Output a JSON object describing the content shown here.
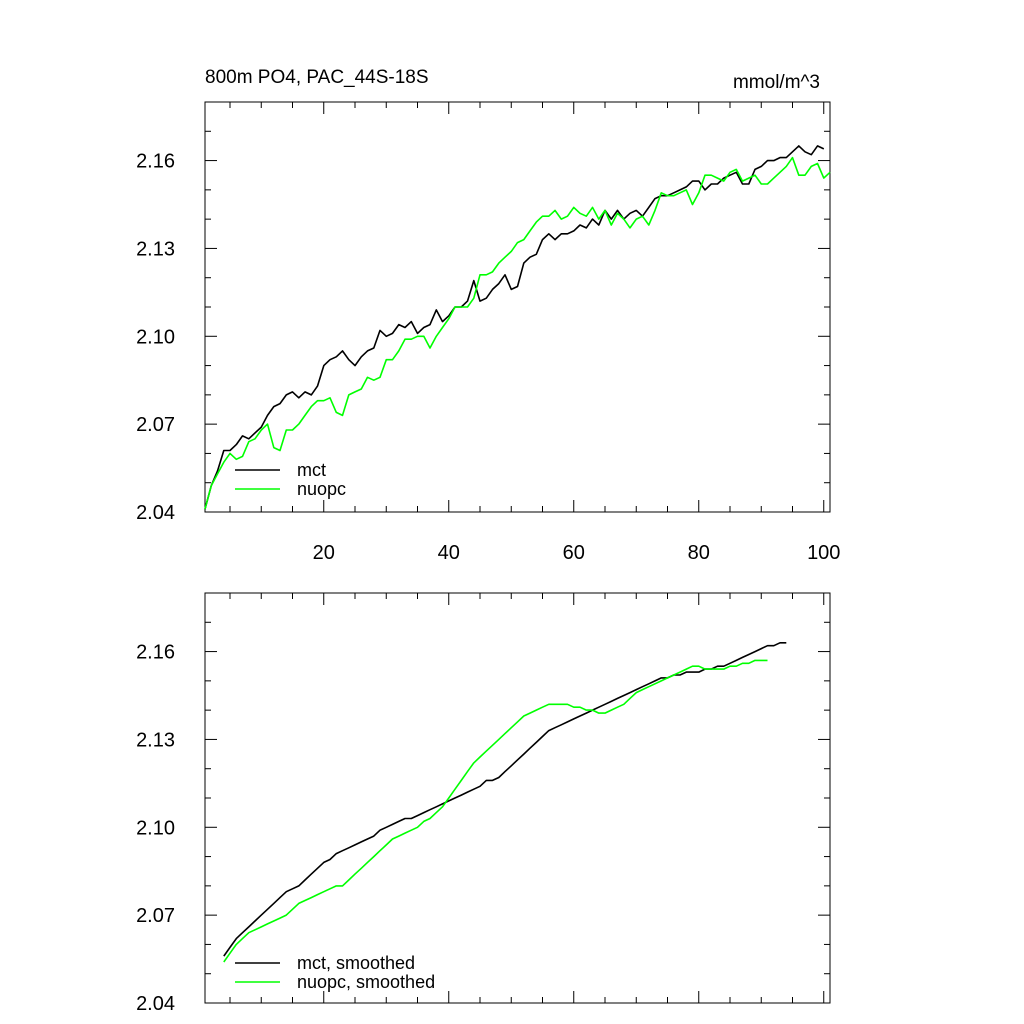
{
  "chart_data": [
    {
      "type": "line",
      "title": "800m PO4, PAC_44S-18S",
      "units": "mmol/m^3",
      "xlim": [
        1,
        101
      ],
      "ylim": [
        2.04,
        2.18
      ],
      "xticks": [
        20,
        40,
        60,
        80,
        100
      ],
      "yticks": [
        2.04,
        2.07,
        2.1,
        2.13,
        2.16
      ],
      "ytick_labels": [
        "2.04",
        "2.07",
        "2.10",
        "2.13",
        "2.16"
      ],
      "xtick_labels": [
        "20",
        "40",
        "60",
        "80",
        "100"
      ],
      "legend_position": "bottom-left",
      "series": [
        {
          "name": "mct",
          "color": "#000000",
          "x_start": 1,
          "values": [
            2.041,
            2.049,
            2.054,
            2.061,
            2.061,
            2.063,
            2.066,
            2.065,
            2.067,
            2.069,
            2.073,
            2.076,
            2.077,
            2.08,
            2.081,
            2.079,
            2.081,
            2.08,
            2.083,
            2.09,
            2.092,
            2.093,
            2.095,
            2.092,
            2.09,
            2.093,
            2.095,
            2.096,
            2.102,
            2.1,
            2.101,
            2.104,
            2.103,
            2.105,
            2.101,
            2.103,
            2.104,
            2.109,
            2.105,
            2.107,
            2.11,
            2.11,
            2.112,
            2.119,
            2.112,
            2.113,
            2.116,
            2.118,
            2.121,
            2.116,
            2.117,
            2.125,
            2.127,
            2.128,
            2.133,
            2.135,
            2.133,
            2.135,
            2.135,
            2.136,
            2.138,
            2.137,
            2.14,
            2.138,
            2.143,
            2.14,
            2.143,
            2.14,
            2.142,
            2.143,
            2.141,
            2.144,
            2.147,
            2.148,
            2.148,
            2.149,
            2.15,
            2.151,
            2.153,
            2.153,
            2.15,
            2.152,
            2.152,
            2.154,
            2.155,
            2.156,
            2.152,
            2.152,
            2.157,
            2.158,
            2.16,
            2.16,
            2.161,
            2.161,
            2.163,
            2.165,
            2.163,
            2.162,
            2.165,
            2.164
          ]
        },
        {
          "name": "nuopc",
          "color": "#00ff00",
          "x_start": 1,
          "values": [
            2.041,
            2.049,
            2.053,
            2.057,
            2.06,
            2.058,
            2.059,
            2.064,
            2.065,
            2.068,
            2.07,
            2.062,
            2.061,
            2.068,
            2.068,
            2.07,
            2.073,
            2.076,
            2.078,
            2.078,
            2.079,
            2.074,
            2.073,
            2.08,
            2.081,
            2.082,
            2.086,
            2.085,
            2.086,
            2.092,
            2.092,
            2.095,
            2.099,
            2.099,
            2.1,
            2.1,
            2.096,
            2.1,
            2.103,
            2.106,
            2.11,
            2.11,
            2.11,
            2.113,
            2.121,
            2.121,
            2.122,
            2.125,
            2.127,
            2.129,
            2.132,
            2.133,
            2.136,
            2.139,
            2.141,
            2.141,
            2.143,
            2.14,
            2.141,
            2.144,
            2.142,
            2.141,
            2.144,
            2.14,
            2.143,
            2.138,
            2.142,
            2.14,
            2.137,
            2.14,
            2.141,
            2.138,
            2.143,
            2.149,
            2.148,
            2.148,
            2.149,
            2.15,
            2.145,
            2.149,
            2.155,
            2.155,
            2.154,
            2.153,
            2.156,
            2.157,
            2.153,
            2.154,
            2.155,
            2.152,
            2.152,
            2.154,
            2.156,
            2.158,
            2.161,
            2.155,
            2.155,
            2.158,
            2.159,
            2.154,
            2.156
          ]
        }
      ]
    },
    {
      "type": "line",
      "title": "",
      "units": "",
      "xlim": [
        1,
        101
      ],
      "ylim": [
        2.04,
        2.18
      ],
      "xticks": [
        20,
        40,
        60,
        80,
        100
      ],
      "yticks": [
        2.04,
        2.07,
        2.1,
        2.13,
        2.16
      ],
      "ytick_labels": [
        "2.04",
        "2.07",
        "2.10",
        "2.13",
        "2.16"
      ],
      "legend_position": "bottom-left",
      "series": [
        {
          "name": "mct, smoothed",
          "color": "#000000",
          "x_start": 4,
          "values": [
            2.056,
            2.059,
            2.062,
            2.064,
            2.066,
            2.068,
            2.07,
            2.072,
            2.074,
            2.076,
            2.078,
            2.079,
            2.08,
            2.082,
            2.084,
            2.086,
            2.088,
            2.089,
            2.091,
            2.092,
            2.093,
            2.094,
            2.095,
            2.096,
            2.097,
            2.099,
            2.1,
            2.101,
            2.102,
            2.103,
            2.103,
            2.104,
            2.105,
            2.106,
            2.107,
            2.108,
            2.109,
            2.11,
            2.111,
            2.112,
            2.113,
            2.114,
            2.116,
            2.116,
            2.117,
            2.119,
            2.121,
            2.123,
            2.125,
            2.127,
            2.129,
            2.131,
            2.133,
            2.134,
            2.135,
            2.136,
            2.137,
            2.138,
            2.139,
            2.14,
            2.141,
            2.142,
            2.143,
            2.144,
            2.145,
            2.146,
            2.147,
            2.148,
            2.149,
            2.15,
            2.151,
            2.151,
            2.152,
            2.152,
            2.153,
            2.153,
            2.153,
            2.154,
            2.154,
            2.155,
            2.155,
            2.156,
            2.157,
            2.158,
            2.159,
            2.16,
            2.161,
            2.162,
            2.162,
            2.163,
            2.163
          ]
        },
        {
          "name": "nuopc, smoothed",
          "color": "#00ff00",
          "x_start": 4,
          "values": [
            2.054,
            2.057,
            2.06,
            2.062,
            2.064,
            2.065,
            2.066,
            2.067,
            2.068,
            2.069,
            2.07,
            2.072,
            2.074,
            2.075,
            2.076,
            2.077,
            2.078,
            2.079,
            2.08,
            2.08,
            2.082,
            2.084,
            2.086,
            2.088,
            2.09,
            2.092,
            2.094,
            2.096,
            2.097,
            2.098,
            2.099,
            2.1,
            2.102,
            2.103,
            2.105,
            2.107,
            2.11,
            2.113,
            2.116,
            2.119,
            2.122,
            2.124,
            2.126,
            2.128,
            2.13,
            2.132,
            2.134,
            2.136,
            2.138,
            2.139,
            2.14,
            2.141,
            2.142,
            2.142,
            2.142,
            2.142,
            2.141,
            2.141,
            2.14,
            2.14,
            2.139,
            2.139,
            2.14,
            2.141,
            2.142,
            2.144,
            2.146,
            2.147,
            2.148,
            2.149,
            2.15,
            2.151,
            2.152,
            2.153,
            2.154,
            2.155,
            2.155,
            2.154,
            2.154,
            2.154,
            2.154,
            2.155,
            2.155,
            2.156,
            2.156,
            2.157,
            2.157,
            2.157
          ]
        }
      ]
    }
  ]
}
